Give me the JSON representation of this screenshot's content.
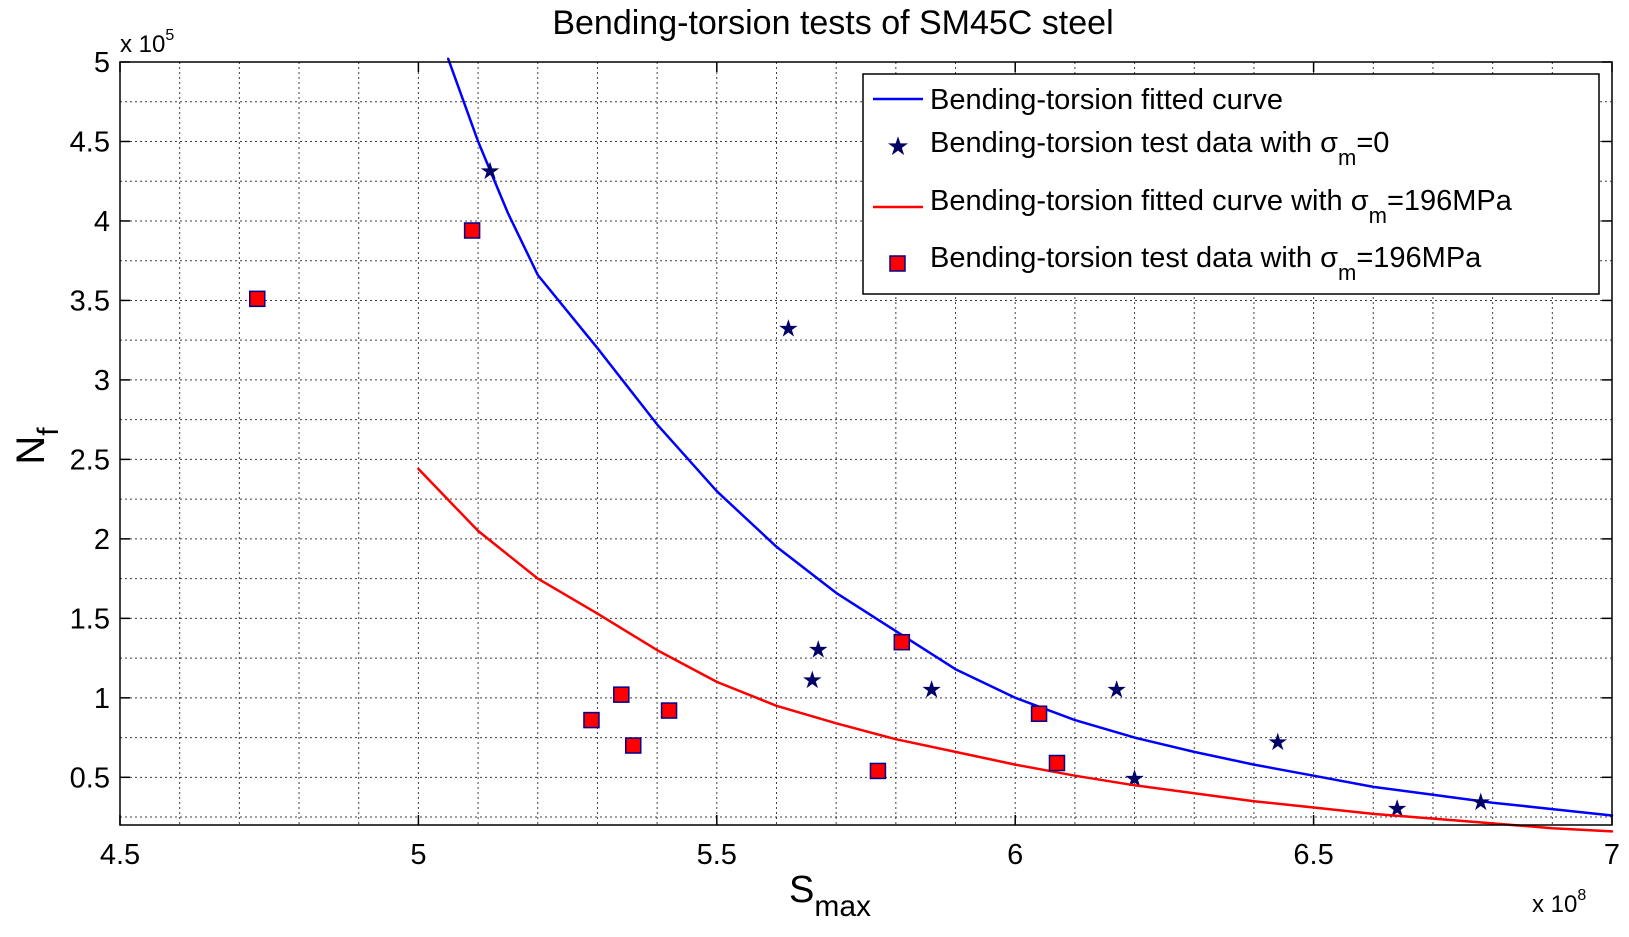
{
  "chart_data": {
    "type": "line",
    "title": "Bending-torsion tests of SM45C steel",
    "xlabel": {
      "main": "S",
      "sub": "max"
    },
    "ylabel": {
      "main": "N",
      "sub": "f"
    },
    "x_multiplier": {
      "base": "x 10",
      "exp": "8"
    },
    "y_multiplier": {
      "base": "x 10",
      "exp": "5"
    },
    "xlim": [
      4.5,
      7
    ],
    "ylim": [
      0.2,
      5
    ],
    "x_ticks": [
      4.5,
      5,
      5.5,
      6,
      6.5,
      7
    ],
    "x_tick_labels": [
      "4.5",
      "5",
      "5.5",
      "6",
      "6.5",
      "7"
    ],
    "y_ticks": [
      0.5,
      1,
      1.5,
      2,
      2.5,
      3,
      3.5,
      4,
      4.5,
      5
    ],
    "y_tick_labels": [
      "0.5",
      "1",
      "1.5",
      "2",
      "2.5",
      "3",
      "3.5",
      "4",
      "4.5",
      "5"
    ],
    "grid": true,
    "legend_position": "top-right",
    "colors": {
      "blue": "#0000ff",
      "red": "#ff0000",
      "star": "#000066",
      "square_fill": "#ff0000",
      "square_edge": "#00008b"
    },
    "series": [
      {
        "name": "Bending-torsion fitted curve",
        "legend_sub": "",
        "kind": "line",
        "color": "#0000ff",
        "x": [
          5.05,
          5.1,
          5.15,
          5.2,
          5.3,
          5.4,
          5.5,
          5.6,
          5.7,
          5.8,
          5.9,
          6.0,
          6.1,
          6.2,
          6.3,
          6.4,
          6.5,
          6.6,
          6.7,
          6.8,
          6.9,
          7.0
        ],
        "y": [
          5.02,
          4.5,
          4.05,
          3.66,
          3.2,
          2.72,
          2.3,
          1.95,
          1.66,
          1.42,
          1.18,
          1.0,
          0.86,
          0.75,
          0.66,
          0.58,
          0.51,
          0.44,
          0.39,
          0.34,
          0.3,
          0.26
        ]
      },
      {
        "name": "Bending-torsion test data with  σ",
        "legend_sub": "m",
        "legend_tail": "=0",
        "kind": "star",
        "color": "#000066",
        "x": [
          5.12,
          5.62,
          5.66,
          5.67,
          5.86,
          6.17,
          6.2,
          6.44,
          6.64,
          6.78
        ],
        "y": [
          4.32,
          3.33,
          1.12,
          1.31,
          1.06,
          1.06,
          0.5,
          0.73,
          0.31,
          0.35
        ]
      },
      {
        "name": "Bending-torsion fitted curve with  σ",
        "legend_sub": "m",
        "legend_tail": "=196MPa",
        "kind": "line",
        "color": "#ff0000",
        "x": [
          5.0,
          5.1,
          5.2,
          5.3,
          5.4,
          5.5,
          5.6,
          5.7,
          5.8,
          5.9,
          6.0,
          6.1,
          6.2,
          6.3,
          6.4,
          6.5,
          6.6,
          6.7,
          6.8,
          6.9,
          7.0
        ],
        "y": [
          2.44,
          2.05,
          1.75,
          1.53,
          1.3,
          1.1,
          0.95,
          0.84,
          0.74,
          0.66,
          0.58,
          0.51,
          0.45,
          0.4,
          0.35,
          0.31,
          0.27,
          0.24,
          0.21,
          0.18,
          0.16
        ]
      },
      {
        "name": "Bending-torsion test data with  σ",
        "legend_sub": "m",
        "legend_tail": "=196MPa",
        "kind": "square",
        "color": "#ff0000",
        "x": [
          4.73,
          5.09,
          5.29,
          5.34,
          5.36,
          5.42,
          5.77,
          5.81,
          6.04,
          6.07
        ],
        "y": [
          3.51,
          3.94,
          0.86,
          1.02,
          0.7,
          0.92,
          0.54,
          1.35,
          0.9,
          0.59
        ]
      }
    ]
  }
}
